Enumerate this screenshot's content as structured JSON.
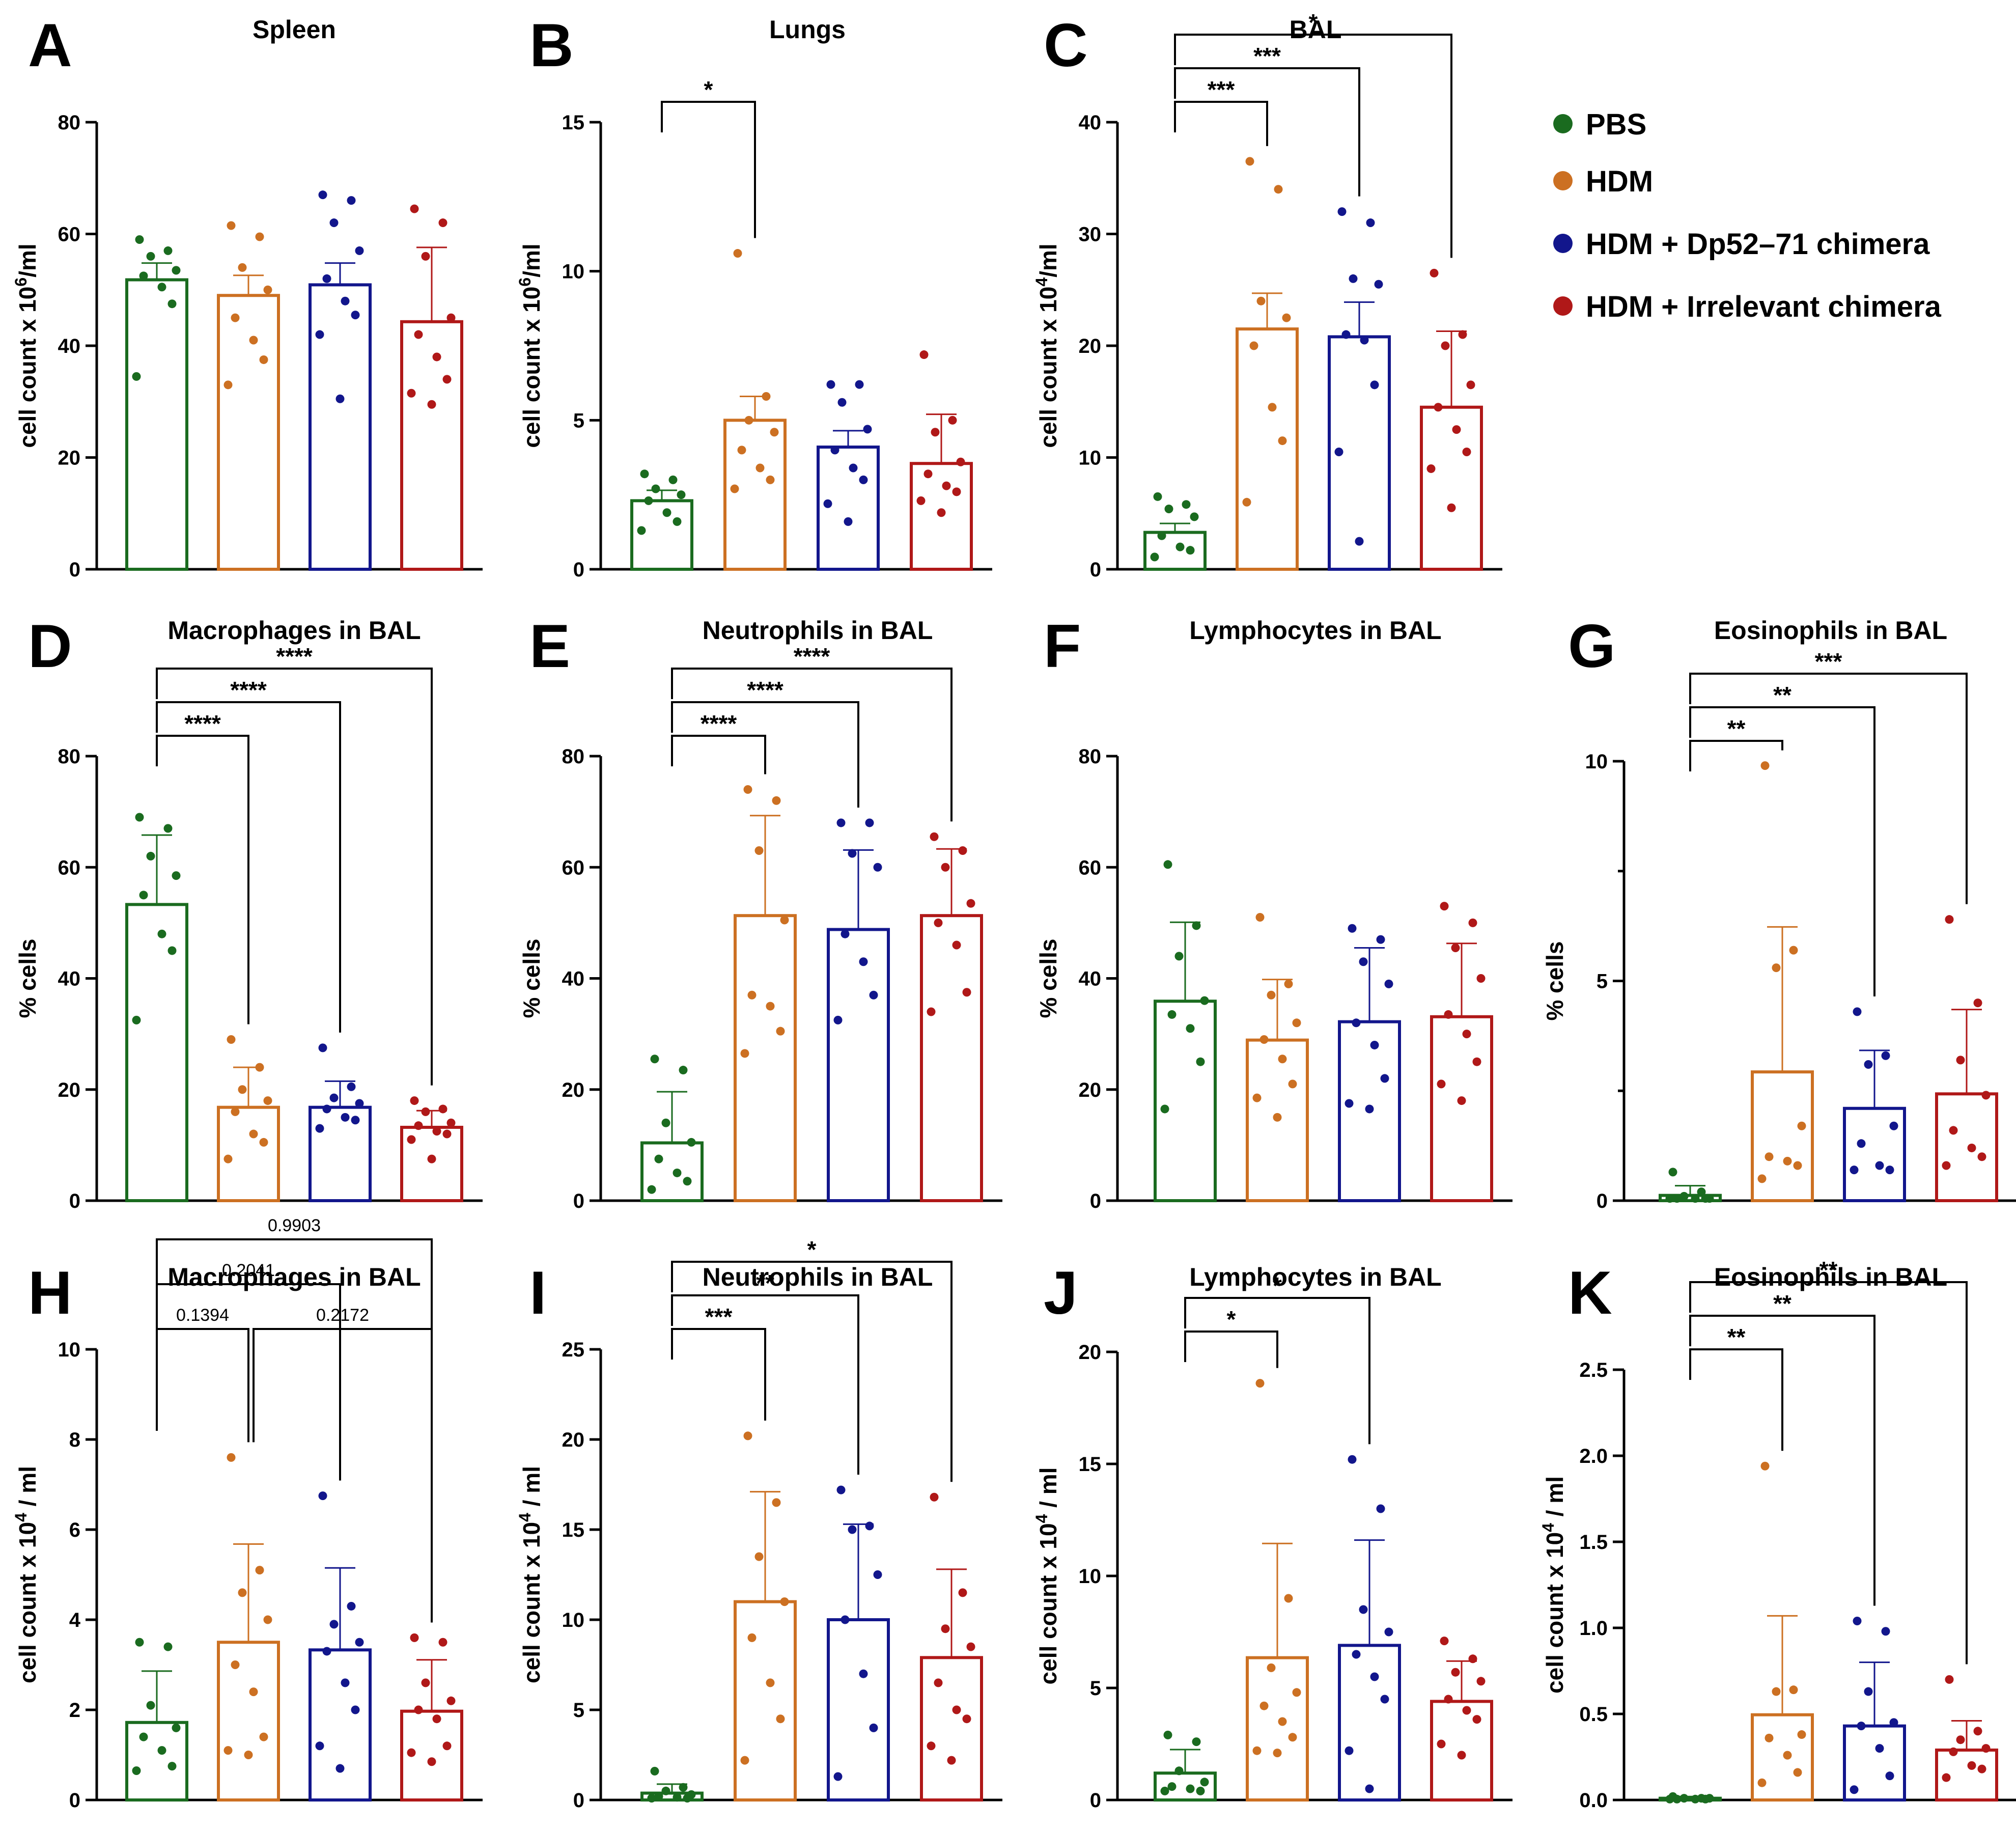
{
  "colors": {
    "PBS": "#1a6b1f",
    "HDM": "#cc7022",
    "Dp52": "#12168c",
    "Irrelevant": "#b01818"
  },
  "legend": [
    {
      "label": "PBS",
      "color": "#1a6b1f"
    },
    {
      "label": "HDM",
      "color": "#cc7022"
    },
    {
      "label": "HDM + Dp52–71 chimera",
      "color": "#12168c"
    },
    {
      "label": "HDM + Irrelevant chimera",
      "color": "#b01818"
    }
  ],
  "chart_data": [
    {
      "panel": "A",
      "title": "Spleen",
      "type": "bar",
      "ylabel_main": "cell count x 10",
      "ylabel_sup": "6",
      "ylabel_tail": "/ml",
      "ylim": [
        0,
        80
      ],
      "yticks": [
        0,
        20,
        40,
        60,
        80
      ],
      "ytick_labels": [
        "0",
        "20",
        "40",
        "60",
        "80"
      ],
      "categories": [
        "PBS",
        "HDM",
        "HDM + Dp52–71 chimera",
        "HDM + Irrelevant chimera"
      ],
      "means": [
        51.8,
        49.0,
        50.9,
        44.3
      ],
      "errors": [
        3.0,
        3.6,
        3.9,
        13.3
      ],
      "points": [
        [
          59,
          57,
          56,
          53.5,
          52.5,
          50.5,
          47.5,
          34.5
        ],
        [
          61.5,
          59.5,
          54,
          50,
          45,
          41,
          37.5,
          33
        ],
        [
          67,
          66,
          62,
          57,
          52,
          48,
          45.5,
          42,
          30.5
        ],
        [
          64.5,
          62,
          56,
          45,
          42,
          38,
          34,
          31.5,
          29.5
        ]
      ],
      "annotations": []
    },
    {
      "panel": "B",
      "title": "Lungs",
      "type": "bar",
      "ylabel_main": "cell count x 10",
      "ylabel_sup": "6",
      "ylabel_tail": "/ml",
      "ylim": [
        0,
        15
      ],
      "yticks": [
        0,
        5,
        10,
        15
      ],
      "ytick_labels": [
        "0",
        "5",
        "10",
        "15"
      ],
      "categories": [
        "PBS",
        "HDM",
        "HDM + Dp52–71 chimera",
        "HDM + Irrelevant chimera"
      ],
      "means": [
        2.3,
        5.0,
        4.1,
        3.55
      ],
      "errors": [
        0.35,
        0.8,
        0.55,
        1.65
      ],
      "points": [
        [
          3.2,
          3.0,
          2.7,
          2.5,
          2.3,
          1.9,
          1.6,
          1.3
        ],
        [
          10.6,
          5.8,
          5.0,
          4.6,
          4.0,
          3.4,
          3.0,
          2.7
        ],
        [
          6.2,
          6.2,
          5.6,
          4.7,
          4.0,
          3.4,
          3.0,
          2.2,
          1.6
        ],
        [
          7.2,
          5.0,
          4.6,
          3.6,
          3.2,
          2.8,
          2.6,
          2.3,
          1.9
        ]
      ],
      "annotations": [
        {
          "from": 0,
          "to": 1,
          "label": "*",
          "level": 0
        }
      ]
    },
    {
      "panel": "C",
      "title": "BAL",
      "type": "bar",
      "ylabel_main": "cell count x 10",
      "ylabel_sup": "4",
      "ylabel_tail": "/ml",
      "ylim": [
        0,
        40
      ],
      "yticks": [
        0,
        10,
        20,
        30,
        40
      ],
      "ytick_labels": [
        "0",
        "10",
        "20",
        "30",
        "40"
      ],
      "categories": [
        "PBS",
        "HDM",
        "HDM + Dp52–71 chimera",
        "HDM + Irrelevant chimera"
      ],
      "means": [
        3.3,
        21.5,
        20.8,
        14.5
      ],
      "errors": [
        0.8,
        3.2,
        3.1,
        6.8
      ],
      "points": [
        [
          6.5,
          5.8,
          5.4,
          4.7,
          3.0,
          2.0,
          1.7,
          1.1
        ],
        [
          36.5,
          34,
          24,
          22.5,
          20,
          14.5,
          11.5,
          6
        ],
        [
          32,
          31,
          26,
          25.5,
          21,
          20.5,
          16.5,
          10.5,
          2.5
        ],
        [
          26.5,
          21,
          20,
          16.5,
          14.5,
          12.5,
          10.5,
          9,
          5.5
        ]
      ],
      "annotations": [
        {
          "from": 0,
          "to": 1,
          "label": "***",
          "level": 0
        },
        {
          "from": 0,
          "to": 2,
          "label": "***",
          "level": 1
        },
        {
          "from": 0,
          "to": 3,
          "label": "*",
          "level": 2
        }
      ]
    },
    {
      "panel": "D",
      "title": "Macrophages in BAL",
      "type": "bar",
      "ylabel_main": "% cells",
      "ylim": [
        0,
        80
      ],
      "yticks": [
        0,
        20,
        40,
        60,
        80
      ],
      "ytick_labels": [
        "0",
        "20",
        "40",
        "60",
        "80"
      ],
      "categories": [
        "PBS",
        "HDM",
        "HDM + Dp52–71 chimera",
        "HDM + Irrelevant chimera"
      ],
      "means": [
        53.3,
        16.8,
        16.8,
        13.2
      ],
      "errors": [
        12.5,
        7.2,
        4.7,
        3.0
      ],
      "points": [
        [
          69,
          67,
          62,
          58.5,
          55,
          48,
          45,
          32.5
        ],
        [
          29,
          24,
          20,
          18,
          16,
          12,
          10.5,
          7.5
        ],
        [
          27.5,
          20.5,
          18.5,
          17.5,
          16.5,
          15,
          14.5,
          13
        ],
        [
          18,
          16.5,
          16,
          14,
          13.5,
          12.5,
          12,
          11,
          7.5
        ]
      ],
      "annotations": [
        {
          "from": 0,
          "to": 1,
          "label": "****",
          "level": 0
        },
        {
          "from": 0,
          "to": 2,
          "label": "****",
          "level": 1
        },
        {
          "from": 0,
          "to": 3,
          "label": "****",
          "level": 2
        }
      ]
    },
    {
      "panel": "E",
      "title": "Neutrophils in BAL",
      "type": "bar",
      "ylabel_main": "% cells",
      "ylim": [
        0,
        80
      ],
      "yticks": [
        0,
        20,
        40,
        60,
        80
      ],
      "ytick_labels": [
        "0",
        "20",
        "40",
        "60",
        "80"
      ],
      "categories": [
        "PBS",
        "HDM",
        "HDM + Dp52–71 chimera",
        "HDM + Irrelevant chimera"
      ],
      "means": [
        10.4,
        51.3,
        48.8,
        51.3
      ],
      "errors": [
        9.2,
        18.0,
        14.3,
        12.0
      ],
      "points": [
        [
          25.5,
          23.5,
          14,
          10.5,
          7.5,
          5,
          3.5,
          2
        ],
        [
          74,
          72,
          63,
          50.5,
          37,
          35,
          30.5,
          26.5
        ],
        [
          68,
          68,
          62.5,
          60,
          48,
          43,
          37,
          32.5
        ],
        [
          65.5,
          63,
          60,
          53.5,
          50,
          46,
          37.5,
          34
        ]
      ],
      "annotations": [
        {
          "from": 0,
          "to": 1,
          "label": "****",
          "level": 0
        },
        {
          "from": 0,
          "to": 2,
          "label": "****",
          "level": 1
        },
        {
          "from": 0,
          "to": 3,
          "label": "****",
          "level": 2
        }
      ]
    },
    {
      "panel": "F",
      "title": "Lymphocytes in BAL",
      "type": "bar",
      "ylabel_main": "% cells",
      "ylim": [
        0,
        80
      ],
      "yticks": [
        0,
        20,
        40,
        60,
        80
      ],
      "ytick_labels": [
        "0",
        "20",
        "40",
        "60",
        "80"
      ],
      "categories": [
        "PBS",
        "HDM",
        "HDM + Dp52–71 chimera",
        "HDM + Irrelevant chimera"
      ],
      "means": [
        35.9,
        28.9,
        32.2,
        33.1
      ],
      "errors": [
        14.2,
        10.9,
        13.3,
        13.2
      ],
      "points": [
        [
          60.5,
          49.5,
          44,
          36,
          33.5,
          31,
          25,
          16.5
        ],
        [
          51,
          39,
          37,
          32,
          29,
          25.5,
          21,
          18.5,
          15
        ],
        [
          49,
          47,
          43,
          39,
          32,
          28,
          22,
          17.5,
          16.5
        ],
        [
          53,
          50,
          45.5,
          40,
          33.5,
          30,
          25,
          21,
          18
        ]
      ],
      "annotations": []
    },
    {
      "panel": "G",
      "title": "Eosinophils in BAL",
      "type": "bar",
      "ylabel_main": "% cells",
      "ylim": [
        0,
        10
      ],
      "yticks": [
        0,
        5,
        10
      ],
      "minor_ticks": [
        2.5,
        7.5
      ],
      "ytick_labels": [
        "0",
        "5",
        "10"
      ],
      "categories": [
        "PBS",
        "HDM",
        "HDM + Dp52–71 chimera",
        "HDM + Irrelevant chimera"
      ],
      "means": [
        0.12,
        2.93,
        2.1,
        2.43
      ],
      "errors": [
        0.22,
        3.3,
        1.32,
        1.92
      ],
      "points": [
        [
          0.65,
          0.2,
          0.1,
          0.05,
          0.05,
          0.05,
          0.05,
          0.05
        ],
        [
          9.9,
          5.7,
          5.3,
          1.7,
          1.0,
          0.9,
          0.8,
          0.5
        ],
        [
          4.3,
          3.3,
          3.1,
          1.7,
          1.3,
          0.8,
          0.7,
          0.7
        ],
        [
          6.4,
          4.5,
          3.2,
          2.4,
          1.6,
          1.2,
          1.0,
          0.8
        ]
      ],
      "annotations": [
        {
          "from": 0,
          "to": 1,
          "label": "**",
          "level": 0
        },
        {
          "from": 0,
          "to": 2,
          "label": "**",
          "level": 1
        },
        {
          "from": 0,
          "to": 3,
          "label": "***",
          "level": 2
        }
      ]
    },
    {
      "panel": "H",
      "title": "Macrophages in BAL",
      "type": "bar",
      "ylabel_main": "cell count x 10",
      "ylabel_sup": "4",
      "ylabel_tail": " / ml",
      "ylim": [
        0,
        10
      ],
      "yticks": [
        0,
        2,
        4,
        6,
        8,
        10
      ],
      "ytick_labels": [
        "0",
        "2",
        "4",
        "6",
        "8",
        "10"
      ],
      "categories": [
        "PBS",
        "HDM",
        "HDM + Dp52–71 chimera",
        "HDM + Irrelevant chimera"
      ],
      "means": [
        1.72,
        3.5,
        3.33,
        1.97
      ],
      "errors": [
        1.14,
        2.18,
        1.82,
        1.14
      ],
      "points": [
        [
          3.5,
          3.4,
          2.1,
          1.6,
          1.4,
          1.1,
          0.75,
          0.65
        ],
        [
          7.6,
          5.1,
          4.6,
          4.0,
          3.0,
          2.4,
          1.4,
          1.1,
          1.0
        ],
        [
          6.75,
          4.3,
          3.9,
          3.5,
          3.3,
          2.6,
          2.0,
          1.2,
          0.7
        ],
        [
          3.6,
          3.5,
          2.6,
          2.2,
          2.0,
          1.8,
          1.2,
          1.05,
          0.85
        ]
      ],
      "annotations": [
        {
          "from": 0,
          "to": 1,
          "label": "0.1394",
          "level": 0,
          "kind": "p"
        },
        {
          "from": 1,
          "to": 3,
          "label": "0.2172",
          "level": 0,
          "kind": "p",
          "shifted": true
        },
        {
          "from": 0,
          "to": 2,
          "label": "0.2041",
          "level": 1,
          "kind": "p"
        },
        {
          "from": 0,
          "to": 3,
          "label": "0.9903",
          "level": 2,
          "kind": "p"
        }
      ]
    },
    {
      "panel": "I",
      "title": "Neutrophils in BAL",
      "type": "bar",
      "ylabel_main": "cell count x 10",
      "ylabel_sup": "4",
      "ylabel_tail": " / ml",
      "ylim": [
        0,
        25
      ],
      "yticks": [
        0,
        5,
        10,
        15,
        20,
        25
      ],
      "ytick_labels": [
        "0",
        "5",
        "10",
        "15",
        "20",
        "25"
      ],
      "categories": [
        "PBS",
        "HDM",
        "HDM + Dp52–71 chimera",
        "HDM + Irrelevant chimera"
      ],
      "means": [
        0.38,
        11.0,
        10.0,
        7.9
      ],
      "errors": [
        0.5,
        6.1,
        5.3,
        4.9
      ],
      "points": [
        [
          1.6,
          0.7,
          0.5,
          0.3,
          0.2,
          0.15,
          0.1,
          0.1
        ],
        [
          20.2,
          16.5,
          13.5,
          11,
          9,
          6.5,
          4.5,
          2.2
        ],
        [
          17.2,
          15.2,
          15,
          12.5,
          10,
          7,
          4,
          1.3
        ],
        [
          16.8,
          11.5,
          9.5,
          8.5,
          6.5,
          5,
          4.5,
          3,
          2.2
        ]
      ],
      "annotations": [
        {
          "from": 0,
          "to": 1,
          "label": "***",
          "level": 0
        },
        {
          "from": 0,
          "to": 2,
          "label": "**",
          "level": 1
        },
        {
          "from": 0,
          "to": 3,
          "label": "*",
          "level": 2
        }
      ]
    },
    {
      "panel": "J",
      "title": "Lymphocytes in BAL",
      "type": "bar",
      "ylabel_main": "cell count x 10",
      "ylabel_sup": "4",
      "ylabel_tail": " / ml",
      "ylim": [
        0,
        20
      ],
      "yticks": [
        0,
        5,
        10,
        15,
        20
      ],
      "ytick_labels": [
        "0",
        "5",
        "10",
        "15",
        "20"
      ],
      "categories": [
        "PBS",
        "HDM",
        "HDM + Dp52–71 chimera",
        "HDM + Irrelevant chimera"
      ],
      "means": [
        1.2,
        6.35,
        6.9,
        4.4
      ],
      "errors": [
        1.05,
        5.1,
        4.7,
        1.8
      ],
      "points": [
        [
          2.9,
          2.6,
          1.3,
          0.8,
          0.6,
          0.5,
          0.4,
          0.4
        ],
        [
          18.6,
          9.0,
          5.9,
          4.8,
          4.2,
          3.5,
          2.8,
          2.2,
          2.1
        ],
        [
          15.2,
          13.0,
          8.5,
          7.5,
          6.5,
          5.5,
          4.5,
          2.2,
          0.5
        ],
        [
          7.1,
          6.3,
          5.7,
          5.3,
          4.5,
          4.0,
          3.6,
          2.5,
          2.0
        ]
      ],
      "annotations": [
        {
          "from": 0,
          "to": 1,
          "label": "*",
          "level": 0
        },
        {
          "from": 0,
          "to": 2,
          "label": "*",
          "level": 1
        }
      ]
    },
    {
      "panel": "K",
      "title": "Eosinophils in BAL",
      "type": "bar",
      "ylabel_main": "cell count x 10",
      "ylabel_sup": "4",
      "ylabel_tail": " / ml",
      "ylim": [
        0,
        2.5
      ],
      "yticks": [
        0,
        0.5,
        1.0,
        1.5,
        2.0,
        2.5
      ],
      "ytick_labels": [
        "0.0",
        "0.5",
        "1.0",
        "1.5",
        "2.0",
        "2.5"
      ],
      "categories": [
        "PBS",
        "HDM",
        "HDM + Dp52–71 chimera",
        "HDM + Irrelevant chimera"
      ],
      "means": [
        0.01,
        0.495,
        0.43,
        0.29
      ],
      "errors": [
        0.01,
        0.575,
        0.37,
        0.17
      ],
      "points": [
        [
          0.02,
          0.01,
          0.01,
          0.01,
          0.005,
          0.005,
          0.005,
          0.005
        ],
        [
          1.94,
          0.64,
          0.63,
          0.38,
          0.36,
          0.26,
          0.16,
          0.1
        ],
        [
          1.04,
          0.98,
          0.63,
          0.45,
          0.43,
          0.3,
          0.14,
          0.06
        ],
        [
          0.7,
          0.4,
          0.35,
          0.3,
          0.28,
          0.2,
          0.18,
          0.13
        ]
      ],
      "annotations": [
        {
          "from": 0,
          "to": 1,
          "label": "**",
          "level": 0
        },
        {
          "from": 0,
          "to": 2,
          "label": "**",
          "level": 1
        },
        {
          "from": 0,
          "to": 3,
          "label": "**",
          "level": 2
        }
      ]
    }
  ]
}
